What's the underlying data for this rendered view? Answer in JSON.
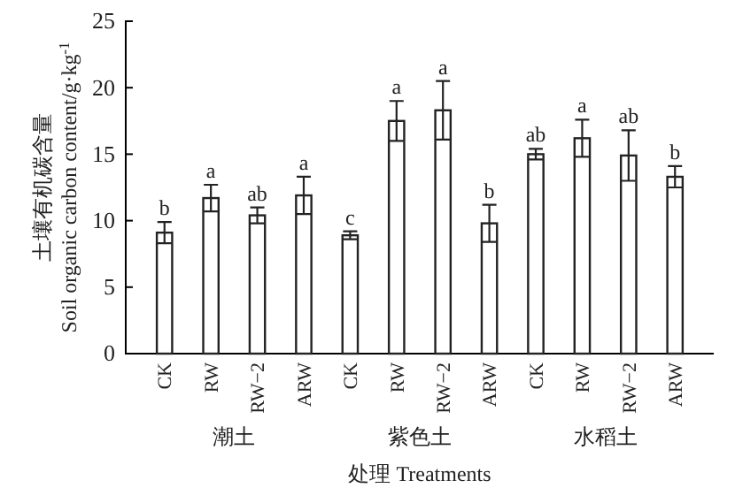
{
  "chart_data": {
    "type": "bar",
    "xlabel": "处理 Treatments",
    "ylabel": "土壤有机碳含量\nSoil organic carbon content/g·kg$^{-1}$",
    "categories": [
      "CK",
      "RW",
      "RW−2",
      "ARW",
      "CK",
      "RW",
      "RW−2",
      "ARW",
      "CK",
      "RW",
      "RW−2",
      "ARW"
    ],
    "values": [
      9.1,
      11.7,
      10.4,
      11.9,
      8.9,
      17.5,
      18.3,
      9.8,
      15.0,
      16.2,
      14.9,
      13.3
    ],
    "errors": [
      0.8,
      1.0,
      0.6,
      1.4,
      0.3,
      1.5,
      2.2,
      1.4,
      0.4,
      1.4,
      1.9,
      0.8
    ],
    "value_labels": [
      "b",
      "a",
      "ab",
      "a",
      "c",
      "a",
      "a",
      "b",
      "ab",
      "a",
      "ab",
      "b"
    ],
    "color": "#ffffff",
    "annotations": [
      "潮土",
      "紫色土",
      "水稻土"
    ],
    "ylim": [
      0,
      25
    ],
    "yticks": [
      0,
      5,
      10,
      15,
      20,
      25
    ]
  }
}
